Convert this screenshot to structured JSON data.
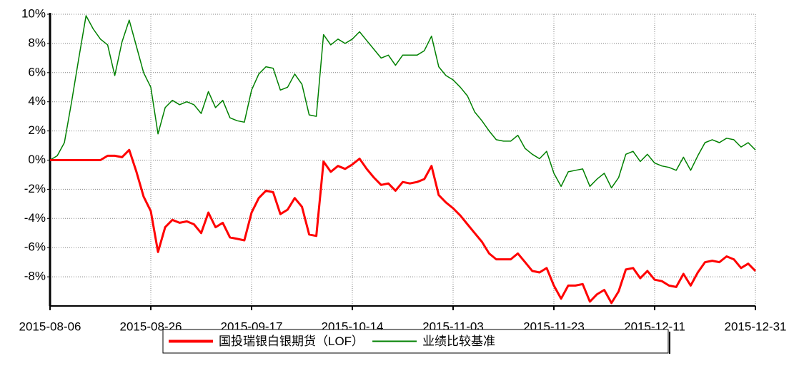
{
  "chart_data": {
    "type": "line",
    "categories": [
      "2015-08-06",
      null,
      null,
      null,
      null,
      null,
      null,
      null,
      null,
      null,
      null,
      null,
      null,
      null,
      "2015-08-26",
      null,
      null,
      null,
      null,
      null,
      null,
      null,
      null,
      null,
      null,
      null,
      null,
      null,
      "2015-09-17",
      null,
      null,
      null,
      null,
      null,
      null,
      null,
      null,
      null,
      null,
      null,
      null,
      null,
      "2015-10-14",
      null,
      null,
      null,
      null,
      null,
      null,
      null,
      null,
      null,
      null,
      null,
      null,
      null,
      "2015-11-03",
      null,
      null,
      null,
      null,
      null,
      null,
      null,
      null,
      null,
      null,
      null,
      null,
      null,
      "2015-11-23",
      null,
      null,
      null,
      null,
      null,
      null,
      null,
      null,
      null,
      null,
      null,
      null,
      null,
      "2015-12-11",
      null,
      null,
      null,
      null,
      null,
      null,
      null,
      null,
      null,
      null,
      null,
      null,
      null,
      "2015-12-31"
    ],
    "series": [
      {
        "name": "国投瑞银白银期货（LOF）",
        "color": "#ff0000",
        "values": [
          0,
          0,
          0,
          0,
          0,
          0,
          0,
          0,
          0.3,
          0.3,
          0.2,
          0.7,
          -0.8,
          -2.5,
          -3.5,
          -6.3,
          -4.6,
          -4.1,
          -4.3,
          -4.2,
          -4.4,
          -5.0,
          -3.6,
          -4.6,
          -4.3,
          -5.3,
          -5.4,
          -5.5,
          -3.6,
          -2.6,
          -2.1,
          -2.2,
          -3.7,
          -3.4,
          -2.6,
          -3.2,
          -5.1,
          -5.2,
          -0.1,
          -0.8,
          -0.4,
          -0.6,
          -0.3,
          0.1,
          -0.6,
          -1.2,
          -1.7,
          -1.6,
          -2.1,
          -1.5,
          -1.6,
          -1.5,
          -1.3,
          -0.4,
          -2.4,
          -2.9,
          -3.3,
          -3.8,
          -4.4,
          -5.0,
          -5.6,
          -6.4,
          -6.8,
          -6.8,
          -6.8,
          -6.4,
          -7.0,
          -7.6,
          -7.7,
          -7.4,
          -8.6,
          -9.5,
          -8.6,
          -8.6,
          -8.5,
          -9.7,
          -9.2,
          -8.9,
          -9.8,
          -9.0,
          -7.5,
          -7.4,
          -8.1,
          -7.6,
          -8.2,
          -8.3,
          -8.6,
          -8.7,
          -7.8,
          -8.6,
          -7.7,
          -7.0,
          -6.9,
          -7.0,
          -6.6,
          -6.8,
          -7.4,
          -7.1,
          -7.6
        ]
      },
      {
        "name": "业绩比较基准",
        "color": "#008000",
        "values": [
          0,
          0.3,
          1.2,
          4.0,
          7.0,
          9.9,
          9.0,
          8.3,
          7.9,
          5.8,
          8.1,
          9.6,
          7.8,
          6.0,
          5.0,
          1.8,
          3.6,
          4.1,
          3.8,
          4.0,
          3.8,
          3.2,
          4.7,
          3.6,
          4.1,
          2.9,
          2.7,
          2.6,
          4.8,
          5.9,
          6.4,
          6.3,
          4.8,
          5.0,
          5.9,
          5.2,
          3.1,
          3.0,
          8.6,
          7.9,
          8.3,
          8.0,
          8.3,
          8.8,
          8.2,
          7.6,
          7.0,
          7.2,
          6.5,
          7.2,
          7.2,
          7.2,
          7.5,
          8.5,
          6.4,
          5.8,
          5.5,
          5.0,
          4.4,
          3.3,
          2.7,
          2.0,
          1.4,
          1.3,
          1.3,
          1.7,
          0.8,
          0.4,
          0.1,
          0.6,
          -0.9,
          -1.8,
          -0.8,
          -0.7,
          -0.6,
          -1.8,
          -1.3,
          -0.9,
          -1.9,
          -1.2,
          0.4,
          0.6,
          -0.1,
          0.4,
          -0.2,
          -0.4,
          -0.5,
          -0.7,
          0.2,
          -0.7,
          0.3,
          1.2,
          1.4,
          1.2,
          1.5,
          1.4,
          0.9,
          1.2,
          0.7
        ]
      }
    ],
    "ylim": [
      -10,
      10
    ],
    "yticks": [
      {
        "value": -8,
        "label": "-8%"
      },
      {
        "value": -6,
        "label": "-6%"
      },
      {
        "value": -4,
        "label": "-4%"
      },
      {
        "value": -2,
        "label": "-2%"
      },
      {
        "value": 0,
        "label": "0%"
      },
      {
        "value": 2,
        "label": "2%"
      },
      {
        "value": 4,
        "label": "4%"
      },
      {
        "value": 6,
        "label": "6%"
      },
      {
        "value": 8,
        "label": "8%"
      },
      {
        "value": 10,
        "label": "10%"
      }
    ],
    "grid": true,
    "legend": "bottom"
  }
}
